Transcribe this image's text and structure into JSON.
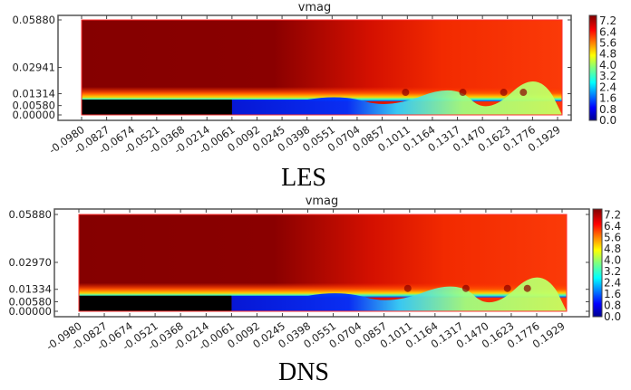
{
  "chart_data": [
    {
      "type": "heatmap",
      "title": "vmag",
      "caption": "LES",
      "x_ticks": [
        "-0.0980",
        "-0.0827",
        "-0.0674",
        "-0.0521",
        "-0.0368",
        "-0.0214",
        "-0.0061",
        "0.0092",
        "0.0245",
        "0.0398",
        "0.0551",
        "0.0704",
        "0.0857",
        "0.1011",
        "0.1164",
        "0.1317",
        "0.1470",
        "0.1623",
        "0.1776",
        "0.1929"
      ],
      "y_ticks": [
        "0.05880",
        "0.02941",
        "0.01314",
        "0.00580",
        "0.00000"
      ],
      "y_values": [
        0.0588,
        0.02941,
        0.01314,
        0.0058,
        0.0
      ],
      "xlim": [
        -0.098,
        0.1929
      ],
      "ylim": [
        0.0,
        0.0588
      ],
      "colorbar": {
        "ticks": [
          "7.2",
          "6.4",
          "5.6",
          "4.8",
          "4.0",
          "3.2",
          "2.4",
          "1.6",
          "0.8",
          "0.0"
        ],
        "range": [
          0.0,
          7.6
        ],
        "colormap": "jet"
      },
      "step_end_x": -0.0061,
      "step_height": 0.0095
    },
    {
      "type": "heatmap",
      "title": "vmag",
      "caption": "DNS",
      "x_ticks": [
        "-0.0980",
        "-0.0827",
        "-0.0674",
        "-0.0521",
        "-0.0368",
        "-0.0214",
        "-0.0061",
        "0.0092",
        "0.0245",
        "0.0398",
        "0.0551",
        "0.0704",
        "0.0857",
        "0.1011",
        "0.1164",
        "0.1317",
        "0.1470",
        "0.1623",
        "0.1776",
        "0.1929"
      ],
      "y_ticks": [
        "0.05880",
        "0.02970",
        "0.01334",
        "0.00580",
        "0.00000"
      ],
      "y_values": [
        0.0588,
        0.0297,
        0.01334,
        0.0058,
        0.0
      ],
      "xlim": [
        -0.098,
        0.1929
      ],
      "ylim": [
        0.0,
        0.0588
      ],
      "colorbar": {
        "ticks": [
          "7.2",
          "6.4",
          "5.6",
          "4.8",
          "4.0",
          "3.2",
          "2.4",
          "1.6",
          "0.8",
          "0.0"
        ],
        "range": [
          0.0,
          7.6
        ],
        "colormap": "jet"
      },
      "step_end_x": -0.0061,
      "step_height": 0.0095
    }
  ]
}
